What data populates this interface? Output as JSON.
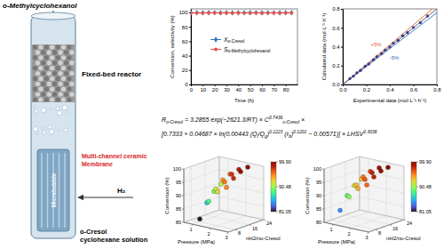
{
  "diagram": {
    "top_label": "o-Methylcyclohexanol",
    "bed_label": "Fixed-bed reactor",
    "membrane_label": [
      "Multi-channel ceramic",
      "Membrane"
    ],
    "bubble_label": "Microbubble",
    "gas_label": "H₂",
    "feed_label": [
      "o-Cresol",
      "cyclohexane solution"
    ]
  },
  "equation": {
    "lines": [
      [
        {
          "text": "R",
          "style": "normal"
        },
        {
          "text": "o-Cresol",
          "style": "sub"
        },
        {
          "text": " = 3.2855 exp(−2621.3/RT) × C",
          "style": "normal"
        },
        {
          "text": "0.7436",
          "style": "sup"
        },
        {
          "text": "o-Cresol",
          "style": "sub"
        },
        {
          "text": " ×",
          "style": "normal"
        }
      ],
      [
        {
          "text": "[0.7333 + 0.04687 × ln(0.00443 (Q",
          "style": "normal"
        },
        {
          "text": "l",
          "style": "sub"
        },
        {
          "text": "/Q",
          "style": "normal"
        },
        {
          "text": "g",
          "style": "sub"
        },
        {
          "text": ")",
          "style": "normal"
        },
        {
          "text": "0.1223",
          "style": "sup"
        },
        {
          "text": " (r",
          "style": "normal"
        },
        {
          "text": "b",
          "style": "sub"
        },
        {
          "text": ")",
          "style": "normal"
        },
        {
          "text": "0.1201",
          "style": "sup"
        },
        {
          "text": " − 0.00571)] × LHSV",
          "style": "normal"
        },
        {
          "text": "0.3036",
          "style": "sup"
        }
      ]
    ]
  },
  "chart_data": [
    {
      "type": "line",
      "xlabel": "Time (h)",
      "ylabel": "Conversion, selectivity (%)",
      "x": [
        0,
        5,
        10,
        15,
        20,
        25,
        30,
        35,
        40,
        45,
        50,
        55,
        60,
        65,
        70,
        75,
        80,
        85
      ],
      "xlim": [
        0,
        90
      ],
      "xticks": [
        0,
        10,
        20,
        30,
        40,
        50,
        60,
        70,
        80
      ],
      "ylim": [
        0,
        105
      ],
      "yticks": [
        0,
        20,
        40,
        60,
        80,
        100
      ],
      "grid": false,
      "legend": "center",
      "series": [
        {
          "name": "Xo-Cresol",
          "color": "#2e75b6",
          "marker": "diamond",
          "values": [
            99.6,
            99.8,
            99.7,
            99.8,
            99.9,
            99.7,
            99.8,
            99.6,
            99.8,
            99.7,
            99.9,
            99.8,
            99.7,
            99.8,
            99.6,
            99.8,
            99.7,
            99.8
          ]
        },
        {
          "name": "So-Methylcyclohexanol",
          "color": "#e8534a",
          "marker": "circle",
          "values": [
            99.2,
            99.4,
            99.0,
            99.5,
            99.3,
            99.1,
            99.4,
            99.2,
            99.5,
            99.3,
            99.0,
            99.4,
            99.2,
            99.3,
            99.5,
            99.1,
            99.3,
            99.4
          ]
        }
      ]
    },
    {
      "type": "scatter",
      "xlabel": "Experimental data (mol·L⁻¹·h⁻¹)",
      "ylabel": "Calculated data (mol·L⁻¹·h⁻¹)",
      "x": [
        0.06,
        0.09,
        0.12,
        0.15,
        0.19,
        0.22,
        0.26,
        0.29,
        0.33,
        0.36,
        0.4,
        0.43,
        0.47,
        0.51,
        0.55,
        0.6,
        0.66,
        0.72
      ],
      "values": [
        0.062,
        0.088,
        0.123,
        0.148,
        0.193,
        0.216,
        0.262,
        0.295,
        0.327,
        0.364,
        0.396,
        0.437,
        0.468,
        0.515,
        0.548,
        0.604,
        0.655,
        0.725
      ],
      "color": "#3a3a8c",
      "marker": "circle",
      "xlim": [
        0,
        0.8
      ],
      "xticks": [
        {
          "value": 0,
          "label": "0.0"
        },
        0.2,
        0.4,
        0.6,
        0.8
      ],
      "ylim": [
        0,
        0.8
      ],
      "yticks": [
        {
          "value": 0,
          "label": "0.0"
        },
        0.2,
        0.4,
        0.6,
        0.8
      ],
      "reference_lines": [
        {
          "slope": 1,
          "color": "#555555"
        },
        {
          "slope": 1.05,
          "color": "#e06030",
          "label": "+5%"
        },
        {
          "slope": 0.95,
          "color": "#3070c0",
          "label": "-5%"
        }
      ]
    },
    {
      "type": "scatter3d",
      "xlabel": "Pressure (MPa)",
      "ylabel": "nH2/no-Cresol",
      "zlabel": "Conversion (%)",
      "marker": "circle",
      "x": [
        1,
        1,
        1,
        1,
        1.5,
        1.5,
        1.5,
        1.5,
        2,
        2,
        2,
        2,
        2.5,
        2.5,
        2.5,
        2.5
      ],
      "y": [
        8,
        12,
        16,
        20,
        8,
        12,
        16,
        20,
        8,
        12,
        16,
        20,
        8,
        12,
        16,
        20
      ],
      "z": [
        81.05,
        86.2,
        89.5,
        91.3,
        88.4,
        92.1,
        94.6,
        95.8,
        92.7,
        95.5,
        97.4,
        98.3,
        95.1,
        97.6,
        99.1,
        99.9
      ],
      "xlim": [
        0.5,
        3
      ],
      "xticks": [
        1,
        2,
        3
      ],
      "ylim": [
        4,
        24
      ],
      "yticks": [
        8,
        16,
        24
      ],
      "zlim": [
        80,
        100
      ],
      "zticks": [
        80,
        85,
        90,
        95,
        100
      ],
      "colorbar": {
        "lim": [
          81.05,
          99.9
        ],
        "ticks": [
          81.05,
          90.48,
          {
            "value": 99.9,
            "label": "99.90"
          }
        ]
      }
    },
    {
      "type": "scatter3d",
      "xlabel": "Pressure (MPa)",
      "ylabel": "nH2/no-Cresol",
      "zlabel": "Conversion (%)",
      "marker": "circle",
      "x": [
        1,
        1,
        1,
        1,
        1.5,
        1.5,
        1.5,
        1.5,
        2,
        2,
        2,
        2,
        2.5,
        2.5,
        2.5,
        2.5
      ],
      "y": [
        8,
        12,
        16,
        20,
        8,
        12,
        16,
        20,
        8,
        12,
        16,
        20,
        8,
        12,
        16,
        20
      ],
      "z": [
        84.3,
        88.9,
        91.7,
        93.2,
        90.1,
        93.6,
        95.7,
        96.8,
        93.9,
        96.4,
        98.0,
        98.9,
        96.0,
        98.1,
        99.4,
        99.8
      ],
      "xlim": [
        0.5,
        3
      ],
      "xticks": [
        1,
        2,
        3
      ],
      "ylim": [
        4,
        24
      ],
      "yticks": [
        8,
        16,
        24
      ],
      "zlim": [
        80,
        100
      ],
      "zticks": [
        80,
        85,
        90,
        95,
        100
      ],
      "colorbar": {
        "lim": [
          81.05,
          99.9
        ],
        "ticks": [
          81.05,
          90.48,
          {
            "value": 99.9,
            "label": "99.90"
          }
        ]
      }
    }
  ]
}
